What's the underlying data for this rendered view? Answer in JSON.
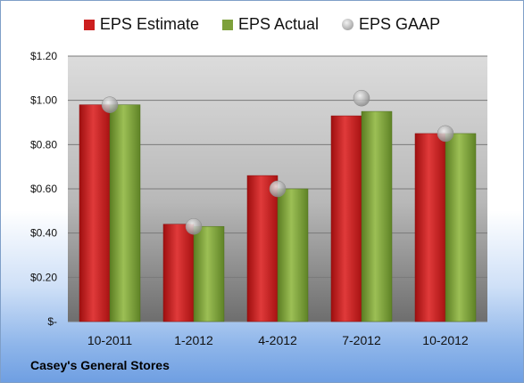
{
  "chart_data": {
    "type": "bar",
    "title": "",
    "xlabel": "",
    "ylabel": "",
    "categories": [
      "10-2011",
      "1-2012",
      "4-2012",
      "7-2012",
      "10-2012"
    ],
    "series": [
      {
        "name": "EPS Estimate",
        "kind": "bar",
        "color": "#cc1f1f",
        "values": [
          0.98,
          0.44,
          0.66,
          0.93,
          0.85
        ]
      },
      {
        "name": "EPS Actual",
        "kind": "bar",
        "color": "#7da03a",
        "values": [
          0.98,
          0.43,
          0.6,
          0.95,
          0.85
        ]
      },
      {
        "name": "EPS GAAP",
        "kind": "marker",
        "color": "#b0b0b0",
        "values": [
          0.98,
          0.43,
          0.6,
          1.01,
          0.85
        ]
      }
    ],
    "ylim": [
      0,
      1.2
    ],
    "yticks": [
      0,
      0.2,
      0.4,
      0.6,
      0.8,
      1.0,
      1.2
    ],
    "ytick_labels": [
      "$-",
      "$0.20",
      "$0.40",
      "$0.60",
      "$0.80",
      "$1.00",
      "$1.20"
    ],
    "grid": true,
    "legend_position": "top"
  },
  "footer": {
    "company": "Casey's General Stores"
  }
}
